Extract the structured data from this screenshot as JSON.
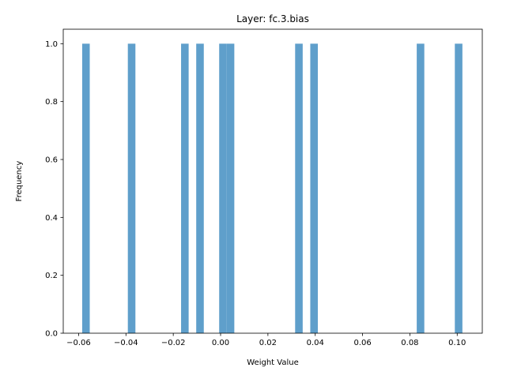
{
  "chart_data": {
    "type": "bar",
    "title": "Layer: fc.3.bias",
    "xlabel": "Weight Value",
    "ylabel": "Frequency",
    "xlim": [
      -0.0665,
      0.1106
    ],
    "ylim": [
      0,
      1.05
    ],
    "bar_color": "#5f9fcb",
    "x_ticks": [
      -0.06,
      -0.04,
      -0.02,
      0.0,
      0.02,
      0.04,
      0.06,
      0.08,
      0.1
    ],
    "x_tick_labels": [
      "−0.06",
      "−0.04",
      "−0.02",
      "0.00",
      "0.02",
      "0.04",
      "0.06",
      "0.08",
      "0.10"
    ],
    "y_ticks": [
      0.0,
      0.2,
      0.4,
      0.6,
      0.8,
      1.0
    ],
    "y_tick_labels": [
      "0.0",
      "0.2",
      "0.4",
      "0.6",
      "0.8",
      "1.0"
    ],
    "bars": [
      {
        "x0": -0.0585,
        "x1": -0.0553,
        "value": 1
      },
      {
        "x0": -0.0392,
        "x1": -0.036,
        "value": 1
      },
      {
        "x0": -0.0167,
        "x1": -0.0135,
        "value": 1
      },
      {
        "x0": -0.0103,
        "x1": -0.0071,
        "value": 1
      },
      {
        "x0": -0.0006,
        "x1": 0.0026,
        "value": 1
      },
      {
        "x0": 0.0026,
        "x1": 0.0058,
        "value": 1
      },
      {
        "x0": 0.0315,
        "x1": 0.0347,
        "value": 1
      },
      {
        "x0": 0.0379,
        "x1": 0.0411,
        "value": 1
      },
      {
        "x0": 0.0829,
        "x1": 0.0861,
        "value": 1
      },
      {
        "x0": 0.099,
        "x1": 0.1022,
        "value": 1
      }
    ]
  }
}
